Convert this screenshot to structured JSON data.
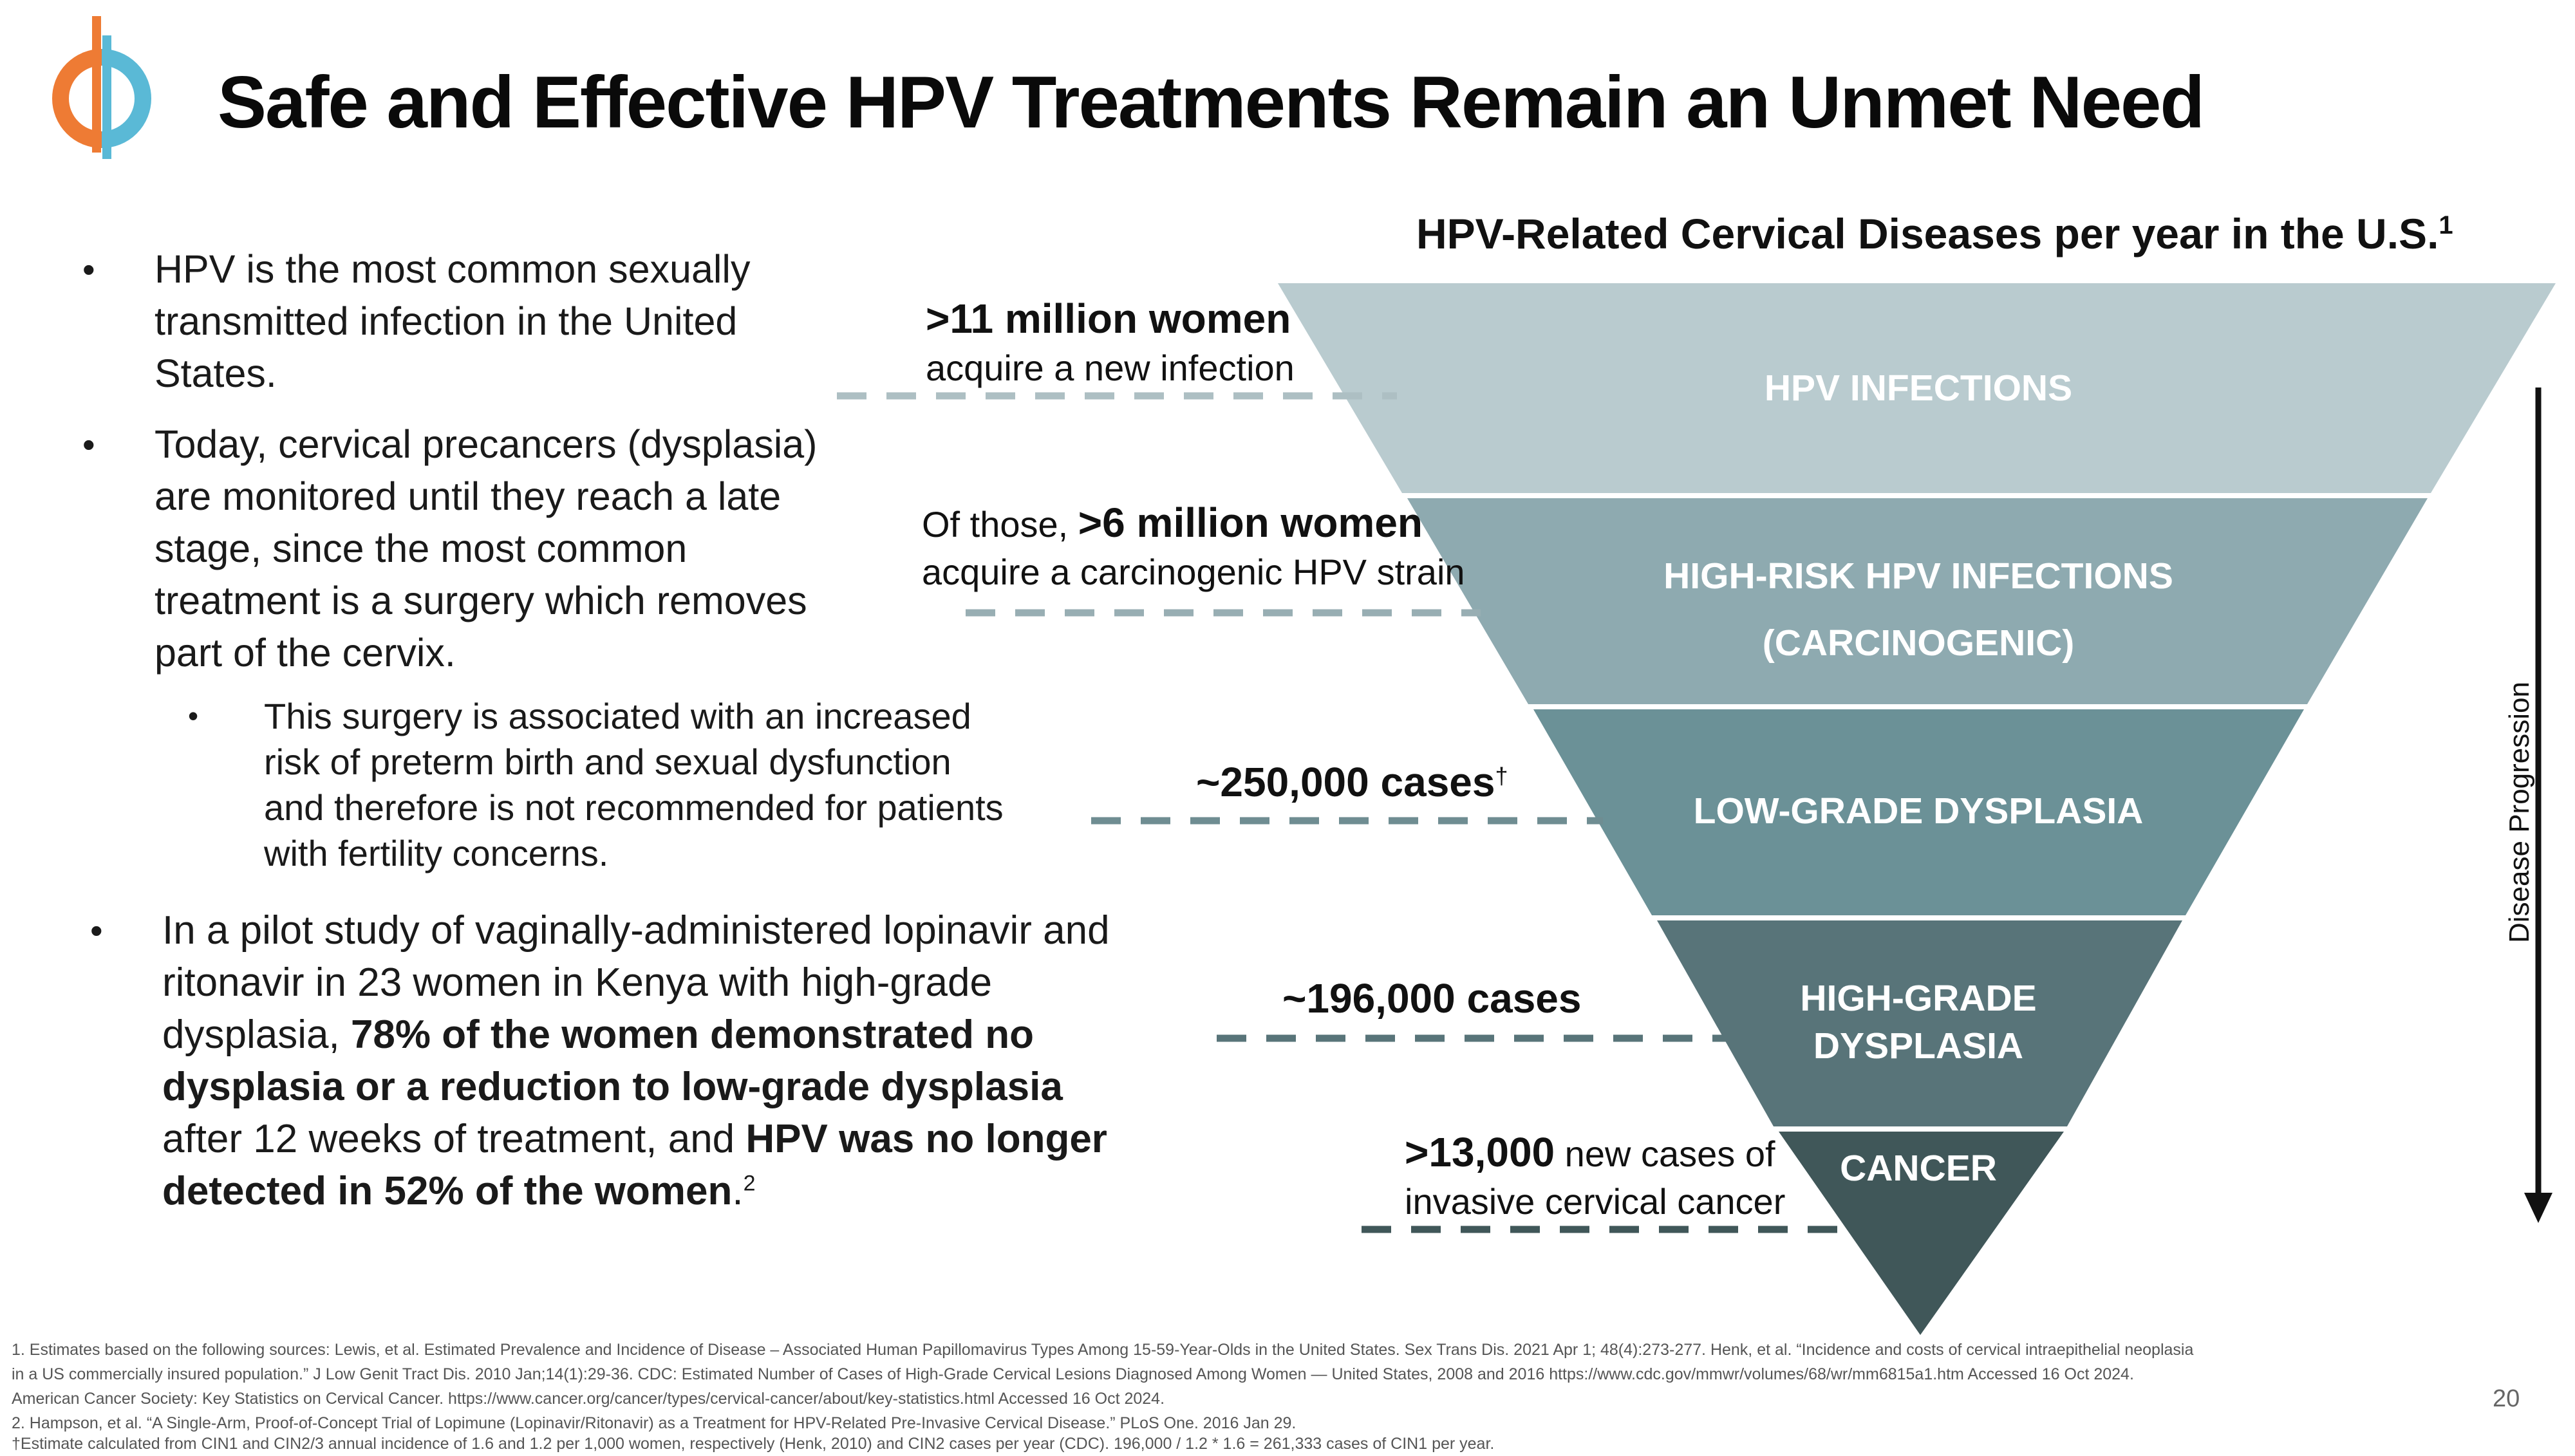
{
  "slide": {
    "title": "Safe and Effective HPV Treatments Remain an Unmet Need",
    "page_number": "20",
    "colors": {
      "logo_orange": "#ee7b34",
      "logo_blue": "#5ab9d6"
    }
  },
  "bullets": {
    "b1": "HPV is the most common sexually transmitted infection in the United States.",
    "b2": "Today, cervical precancers (dysplasia) are monitored until they reach a late stage, since the most common treatment is a surgery which removes part of the cervix.",
    "b3": "This surgery is associated with an increased risk of preterm birth and sexual dysfunction and therefore is not recommended for patients with fertility concerns.",
    "b4": {
      "p1": "In a pilot study of vaginally-administered lopinavir and ritonavir in 23 women in Kenya with high-grade dysplasia, ",
      "bold1": "78% of the women demonstrated no dysplasia or a reduction to low-grade dysplasia",
      "p2": " after 12 weeks of treatment, and ",
      "bold2": "HPV was no longer detected in 52% of the women",
      "p3": ".",
      "sup": "2"
    },
    "bullet_symbol": "•"
  },
  "chart": {
    "title": "HPV-Related Cervical Diseases per year in the U.S.",
    "title_sup": "1",
    "axis_label": "Disease Progression",
    "levels": [
      {
        "label_lines": [
          "HPV INFECTIONS"
        ],
        "color": "#b9cbcf"
      },
      {
        "label_lines": [
          "HIGH-RISK HPV INFECTIONS",
          "(CARCINOGENIC)"
        ],
        "color": "#8eaab0"
      },
      {
        "label_lines": [
          "LOW-GRADE DYSPLASIA"
        ],
        "color": "#6b9197"
      },
      {
        "label_lines": [
          "HIGH-GRADE",
          "DYSPLASIA"
        ],
        "color": "#587479"
      },
      {
        "label_lines": [
          "CANCER"
        ],
        "color": "#405759"
      }
    ],
    "annotations": {
      "a1": {
        "bold": ">11 million women",
        "rest": "acquire a new infection"
      },
      "a2": {
        "pre": "Of those, ",
        "bold": ">6 million women",
        "rest": "acquire a carcinogenic HPV strain"
      },
      "a3": {
        "bold": "~250,000 cases",
        "sup": "†"
      },
      "a4": {
        "bold": "~196,000 cases"
      },
      "a5": {
        "bold": ">13,000",
        "rest1": " new cases of",
        "rest2": "invasive cervical cancer"
      }
    }
  },
  "footnotes": [
    "1. Estimates based on the following sources: Lewis, et al. Estimated Prevalence and Incidence of Disease – Associated Human Papillomavirus Types Among 15-59-Year-Olds in the United States. Sex Trans Dis. 2021 Apr 1; 48(4):273-277. Henk, et al. “Incidence and costs of cervical intraepithelial neoplasia",
    "in a US commercially insured population.” J Low Genit Tract Dis. 2010 Jan;14(1):29-36. CDC: Estimated Number of Cases of High-Grade Cervical Lesions Diagnosed Among Women — United States, 2008 and 2016 https://www.cdc.gov/mmwr/volumes/68/wr/mm6815a1.htm Accessed 16 Oct 2024.",
    "American Cancer Society: Key Statistics on Cervical Cancer. https://www.cancer.org/cancer/types/cervical-cancer/about/key-statistics.html Accessed 16 Oct 2024.",
    "2. Hampson, et al. “A Single-Arm, Proof-of-Concept Trial of Lopimune (Lopinavir/Ritonavir) as a Treatment for HPV-Related Pre-Invasive Cervical Disease.” PLoS One. 2016 Jan 29.",
    "†Estimate calculated from CIN1 and CIN2/3 annual incidence of 1.6 and 1.2 per 1,000 women, respectively (Henk, 2010) and CIN2 cases per year (CDC). 196,000 / 1.2 * 1.6 = 261,333 cases of CIN1 per year."
  ]
}
